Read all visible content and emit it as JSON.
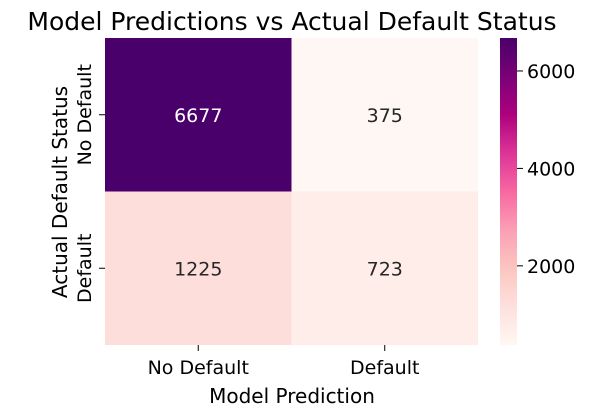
{
  "chart_data": {
    "type": "heatmap",
    "title": "Model Predictions vs Actual Default Status",
    "xlabel": "Model Prediction",
    "ylabel": "Actual Default Status",
    "x_categories": [
      "No Default",
      "Default"
    ],
    "y_categories": [
      "No Default",
      "Default"
    ],
    "values": [
      [
        6677,
        375
      ],
      [
        1225,
        723
      ]
    ],
    "colormap": "RdPu",
    "colorbar": {
      "min": 375,
      "max": 6677,
      "ticks": [
        2000,
        4000,
        6000
      ]
    }
  }
}
